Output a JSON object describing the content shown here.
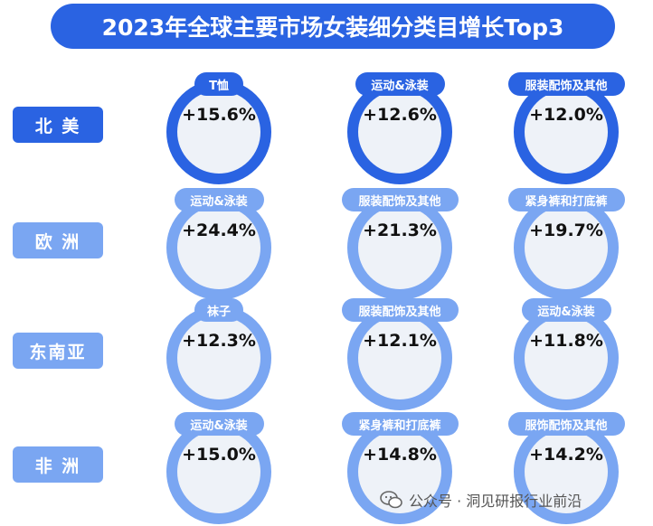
{
  "title": "2023年全球主要市场女装细分类目增长Top3",
  "colors": {
    "primary": "#2a63e2",
    "light": "#7aa6f2",
    "ring_fill": "#eef2f8"
  },
  "watermark": {
    "text": "公众号 · 洞见研报行业前沿",
    "icon": "wechat-icon"
  },
  "chart_data": {
    "type": "table",
    "title": "2023年全球主要市场女装细分类目增长Top3",
    "regions": [
      {
        "name": "北 美",
        "items": [
          {
            "category": "T恤",
            "value": "+15.6%"
          },
          {
            "category": "运动&泳装",
            "value": "+12.6%"
          },
          {
            "category": "服装配饰及其他",
            "value": "+12.0%"
          }
        ]
      },
      {
        "name": "欧 洲",
        "items": [
          {
            "category": "运动&泳装",
            "value": "+24.4%"
          },
          {
            "category": "服装配饰及其他",
            "value": "+21.3%"
          },
          {
            "category": "紧身裤和打底裤",
            "value": "+19.7%"
          }
        ]
      },
      {
        "name": "东南亚",
        "items": [
          {
            "category": "袜子",
            "value": "+12.3%"
          },
          {
            "category": "服装配饰及其他",
            "value": "+12.1%"
          },
          {
            "category": "运动&泳装",
            "value": "+11.8%"
          }
        ]
      },
      {
        "name": "非 洲",
        "items": [
          {
            "category": "运动&泳装",
            "value": "+15.0%"
          },
          {
            "category": "紧身裤和打底裤",
            "value": "+14.8%"
          },
          {
            "category": "服饰配饰及其他",
            "value": "+14.2%"
          }
        ]
      }
    ]
  }
}
